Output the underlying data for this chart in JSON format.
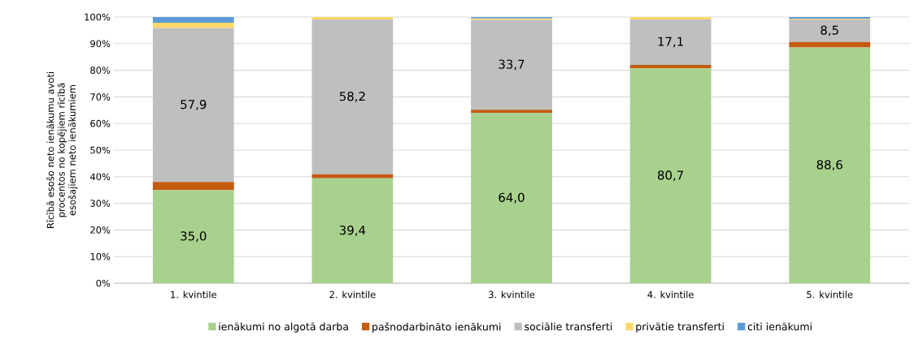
{
  "chart_data": {
    "type": "bar",
    "stacked": true,
    "ylabel": "Rīcībā esošo neto ienākumu avoti procentos no kopējiem rīcībā esošajiem neto ienākumiem",
    "categories": [
      "1. kvintile",
      "2. kvintile",
      "3. kvintile",
      "4. kvintile",
      "5. kvintile"
    ],
    "series": [
      {
        "name": "ienākumi no algotā darba",
        "color": "#a9d18e",
        "values": [
          35.0,
          39.4,
          64.0,
          80.7,
          88.6
        ],
        "value_labels": [
          "35,0",
          "39,4",
          "64,0",
          "80,7",
          "88,6"
        ]
      },
      {
        "name": "pašnodarbināto ienākumi",
        "color": "#c55a11",
        "values": [
          3.0,
          1.5,
          1.2,
          1.3,
          2.0
        ]
      },
      {
        "name": "sociālie transferti",
        "color": "#bfbfbf",
        "values": [
          57.9,
          58.2,
          33.7,
          17.1,
          8.5
        ],
        "value_labels": [
          "57,9",
          "58,2",
          "33,7",
          "17,1",
          "8,5"
        ]
      },
      {
        "name": "privātie transferti",
        "color": "#ffd966",
        "values": [
          2.0,
          0.9,
          0.6,
          0.9,
          0.2
        ]
      },
      {
        "name": "citi ienākumi",
        "color": "#5b9bd5",
        "values": [
          2.1,
          0.0,
          0.5,
          0.0,
          0.7
        ]
      }
    ],
    "ylim": [
      0,
      100
    ],
    "yticks": [
      {
        "value": 0,
        "label": "0%"
      },
      {
        "value": 10,
        "label": "10%"
      },
      {
        "value": 20,
        "label": "20%"
      },
      {
        "value": 30,
        "label": "30%"
      },
      {
        "value": 40,
        "label": "40%"
      },
      {
        "value": 50,
        "label": "50%"
      },
      {
        "value": 60,
        "label": "60%"
      },
      {
        "value": 70,
        "label": "70%"
      },
      {
        "value": 80,
        "label": "80%"
      },
      {
        "value": 90,
        "label": "90%"
      },
      {
        "value": 100,
        "label": "100%"
      }
    ],
    "grid": "y",
    "legend": "bottom"
  }
}
